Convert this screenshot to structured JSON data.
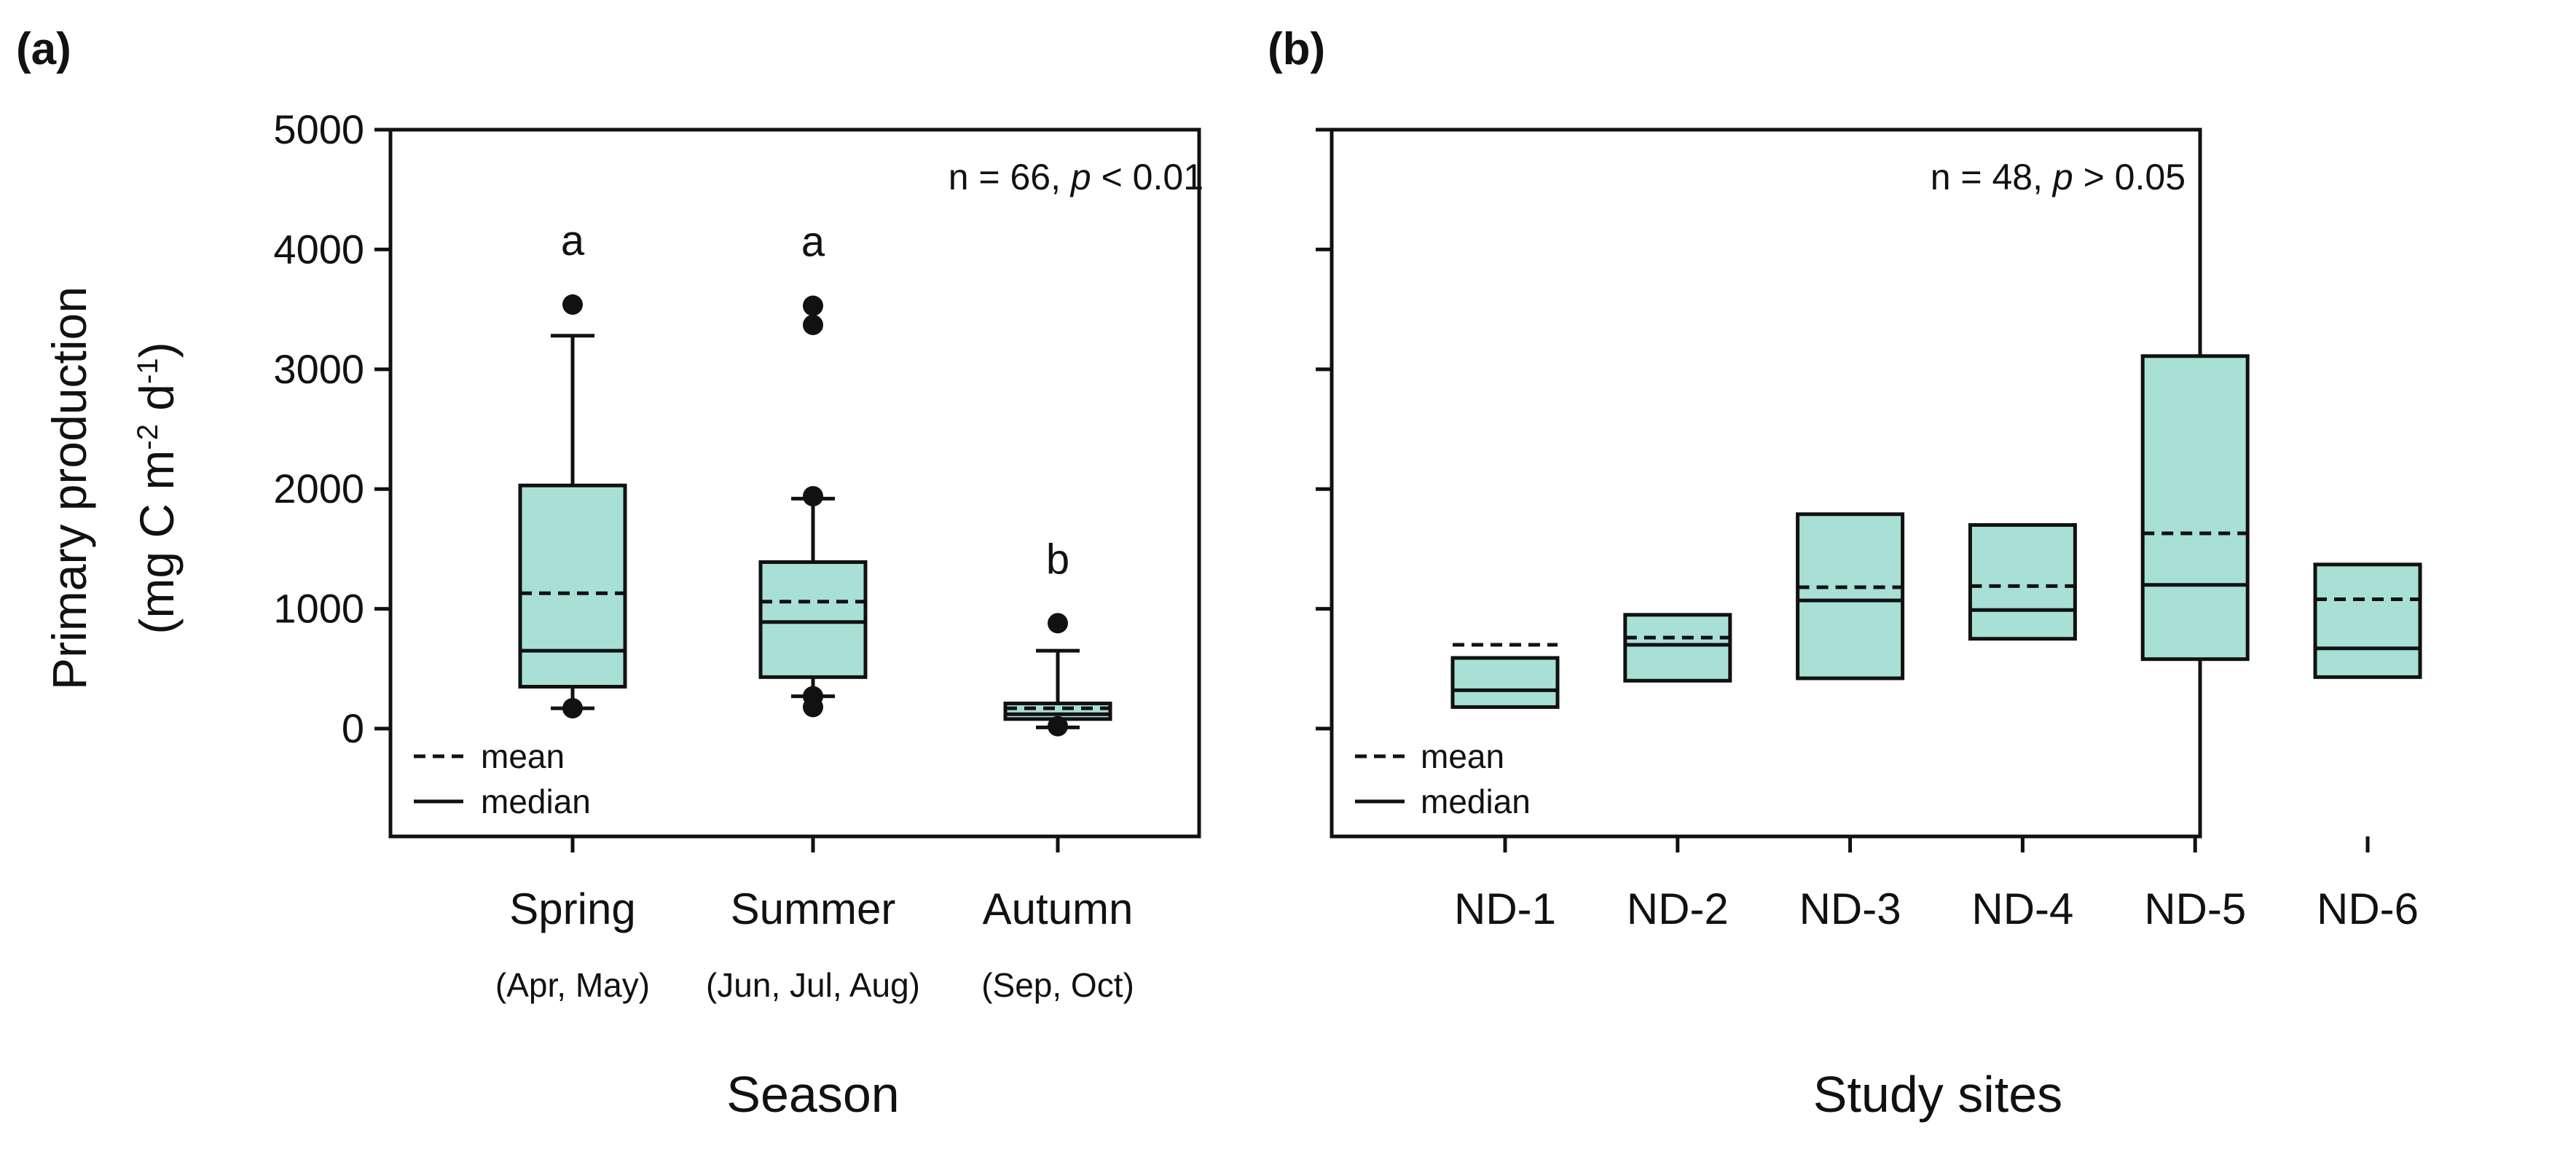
{
  "figure": {
    "y_label_line1": "Primary production",
    "y_label_line2_main": "(mg C m",
    "y_label_sup1": "-2",
    "y_label_mid": " d",
    "y_label_sup2": "-1",
    "y_label_close": ")"
  },
  "legend": {
    "mean_label": "mean",
    "median_label": "median"
  },
  "colors": {
    "box_fill": "#a8e0d6",
    "stroke": "#111111"
  },
  "chart_data": [
    {
      "type": "box",
      "panel_label": "(a)",
      "xlabel": "Season",
      "ylabel": "Primary production (mg C m-2 d-1)",
      "ylim": [
        -900,
        5000
      ],
      "yticks": [
        0,
        1000,
        2000,
        3000,
        4000,
        5000
      ],
      "ytick_labels": [
        "0",
        "1000",
        "2000",
        "3000",
        "4000",
        "5000"
      ],
      "stat_prefix": "n = 66, ",
      "stat_p": "p",
      "stat_suffix": " < 0.01",
      "categories": [
        "Spring",
        "Summer",
        "Autumn"
      ],
      "sublabels": [
        "(Apr, May)",
        "(Jun, Jul, Aug)",
        "(Sep, Oct)"
      ],
      "boxes": [
        {
          "q1": 350,
          "median": 650,
          "q3": 2030,
          "mean": 1130,
          "whisker_low": 170,
          "whisker_high": 3280,
          "outliers": [
            3540,
            170
          ],
          "letter": "a"
        },
        {
          "q1": 430,
          "median": 890,
          "q3": 1390,
          "mean": 1060,
          "whisker_low": 270,
          "whisker_high": 1920,
          "outliers": [
            3530,
            3370,
            1940,
            270,
            180
          ],
          "letter": "a"
        },
        {
          "q1": 80,
          "median": 120,
          "q3": 210,
          "mean": 170,
          "whisker_low": 10,
          "whisker_high": 650,
          "outliers": [
            880,
            20
          ],
          "letter": "b"
        }
      ]
    },
    {
      "type": "box",
      "panel_label": "(b)",
      "xlabel": "Study sites",
      "ylim": [
        -900,
        5000
      ],
      "yticks": [
        0,
        1000,
        2000,
        3000,
        4000,
        5000
      ],
      "stat_prefix": "n = 48,  ",
      "stat_p": "p",
      "stat_suffix": " > 0.05",
      "categories": [
        "ND-1",
        "ND-2",
        "ND-3",
        "ND-4",
        "ND-5",
        "ND-6"
      ],
      "boxes": [
        {
          "q1": 180,
          "median": 320,
          "q3": 590,
          "mean": 700
        },
        {
          "q1": 400,
          "median": 700,
          "q3": 950,
          "mean": 760
        },
        {
          "q1": 420,
          "median": 1070,
          "q3": 1790,
          "mean": 1180
        },
        {
          "q1": 750,
          "median": 990,
          "q3": 1700,
          "mean": 1190
        },
        {
          "q1": 580,
          "median": 1200,
          "q3": 3110,
          "mean": 1630
        },
        {
          "q1": 430,
          "median": 670,
          "q3": 1370,
          "mean": 1080
        }
      ]
    }
  ]
}
